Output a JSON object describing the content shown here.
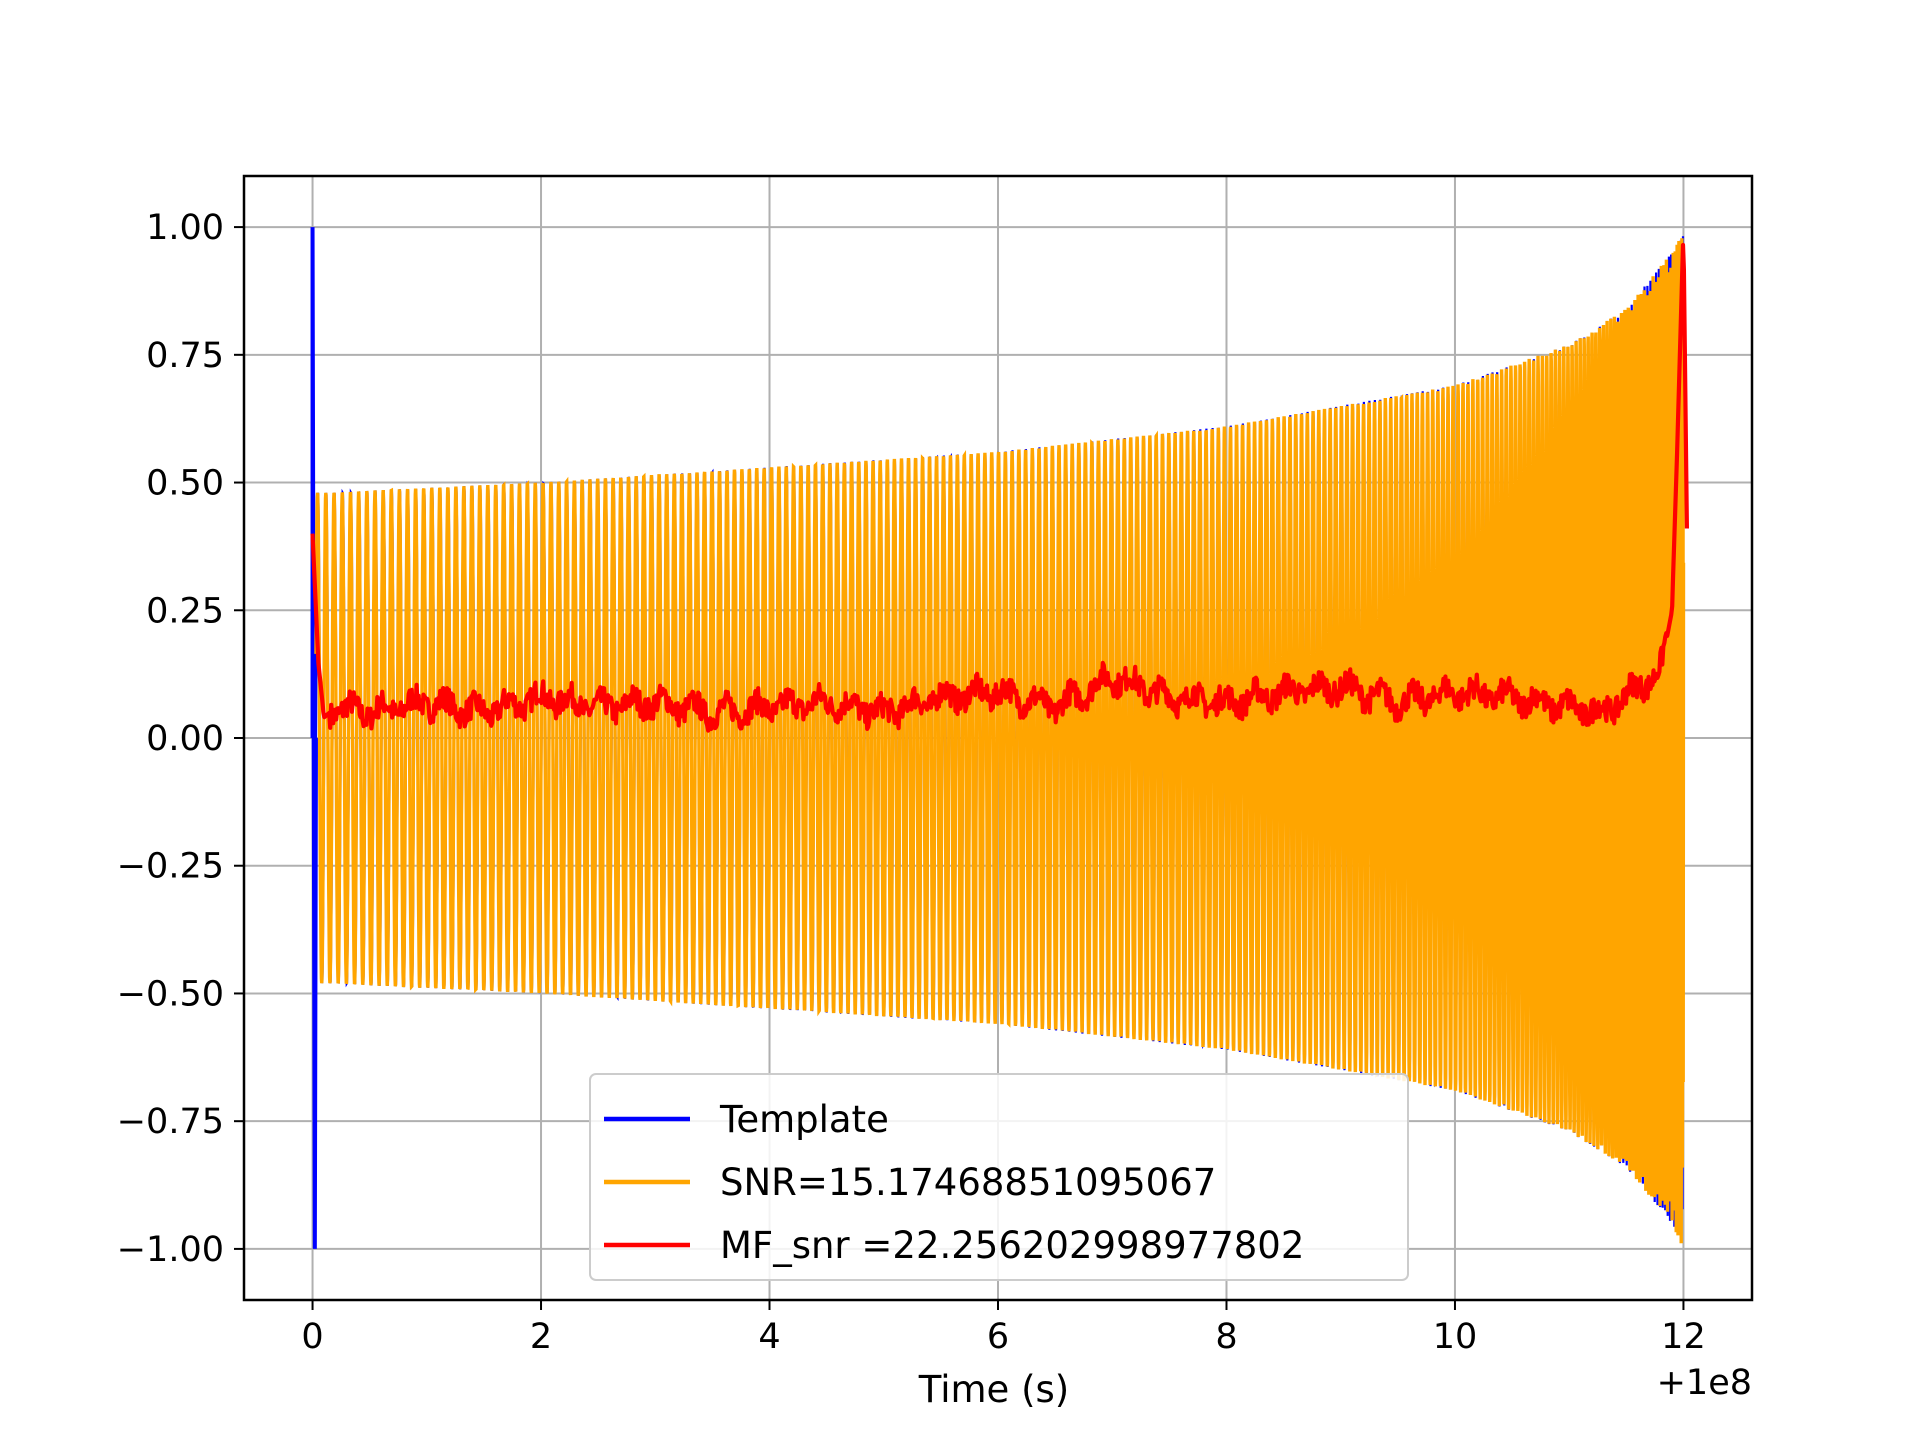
{
  "chart_data": {
    "type": "line",
    "title": "",
    "xlabel": "Time (s)",
    "ylabel": "",
    "x_offset_label": "+1e8",
    "xlim": [
      -0.6,
      12.6
    ],
    "ylim": [
      -1.1,
      1.1
    ],
    "x_ticks": [
      0,
      2,
      4,
      6,
      8,
      10,
      12
    ],
    "x_tick_labels": [
      "0",
      "2",
      "4",
      "6",
      "8",
      "10",
      "12"
    ],
    "y_ticks": [
      1.0,
      0.75,
      0.5,
      0.25,
      0.0,
      -0.25,
      -0.5,
      -0.75,
      -1.0
    ],
    "y_tick_labels": [
      "1.00",
      "0.75",
      "0.50",
      "0.25",
      "0.00",
      "−0.25",
      "−0.50",
      "−0.75",
      "−1.00"
    ],
    "grid": true,
    "legend_position": "lower-center",
    "series": [
      {
        "name": "Template",
        "color": "#0000ff",
        "description": "chirp oscillating between envelope; spike to ±1.00 at t≈0",
        "envelope": {
          "x": [
            0.1,
            2,
            4,
            6,
            8,
            10,
            11,
            11.5,
            11.9,
            12.0
          ],
          "y": [
            0.48,
            0.5,
            0.53,
            0.56,
            0.61,
            0.69,
            0.77,
            0.84,
            0.95,
            1.0
          ]
        },
        "spike_at_start": {
          "x": 0.0,
          "ymin": -1.0,
          "ymax": 1.0
        }
      },
      {
        "name": "SNR=15.17468851095067",
        "color": "#ffa500",
        "description": "chirp oscillating between envelope, ends at ±1.00 at t≈12",
        "envelope": {
          "x": [
            0.1,
            2,
            4,
            6,
            8,
            10,
            11,
            11.5,
            11.9,
            12.0
          ],
          "y": [
            0.48,
            0.5,
            0.53,
            0.56,
            0.61,
            0.69,
            0.77,
            0.84,
            0.95,
            1.0
          ]
        }
      },
      {
        "name": "MF_snr =22.256202998977802",
        "color": "#ff0000",
        "x": [
          0.0,
          0.05,
          0.1,
          0.2,
          0.5,
          1,
          1.5,
          2,
          2.5,
          3,
          3.5,
          4,
          4.5,
          5,
          5.5,
          6,
          6.5,
          7,
          7.5,
          8,
          8.5,
          9,
          9.5,
          10,
          10.5,
          11,
          11.3,
          11.6,
          11.8,
          11.9,
          11.95,
          12.0,
          12.03
        ],
        "y": [
          0.4,
          0.15,
          0.04,
          0.06,
          0.05,
          0.07,
          0.05,
          0.08,
          0.06,
          0.07,
          0.05,
          0.06,
          0.07,
          0.05,
          0.08,
          0.09,
          0.06,
          0.12,
          0.08,
          0.07,
          0.09,
          0.1,
          0.07,
          0.09,
          0.08,
          0.06,
          0.05,
          0.1,
          0.13,
          0.25,
          0.6,
          1.0,
          0.41
        ]
      }
    ]
  }
}
